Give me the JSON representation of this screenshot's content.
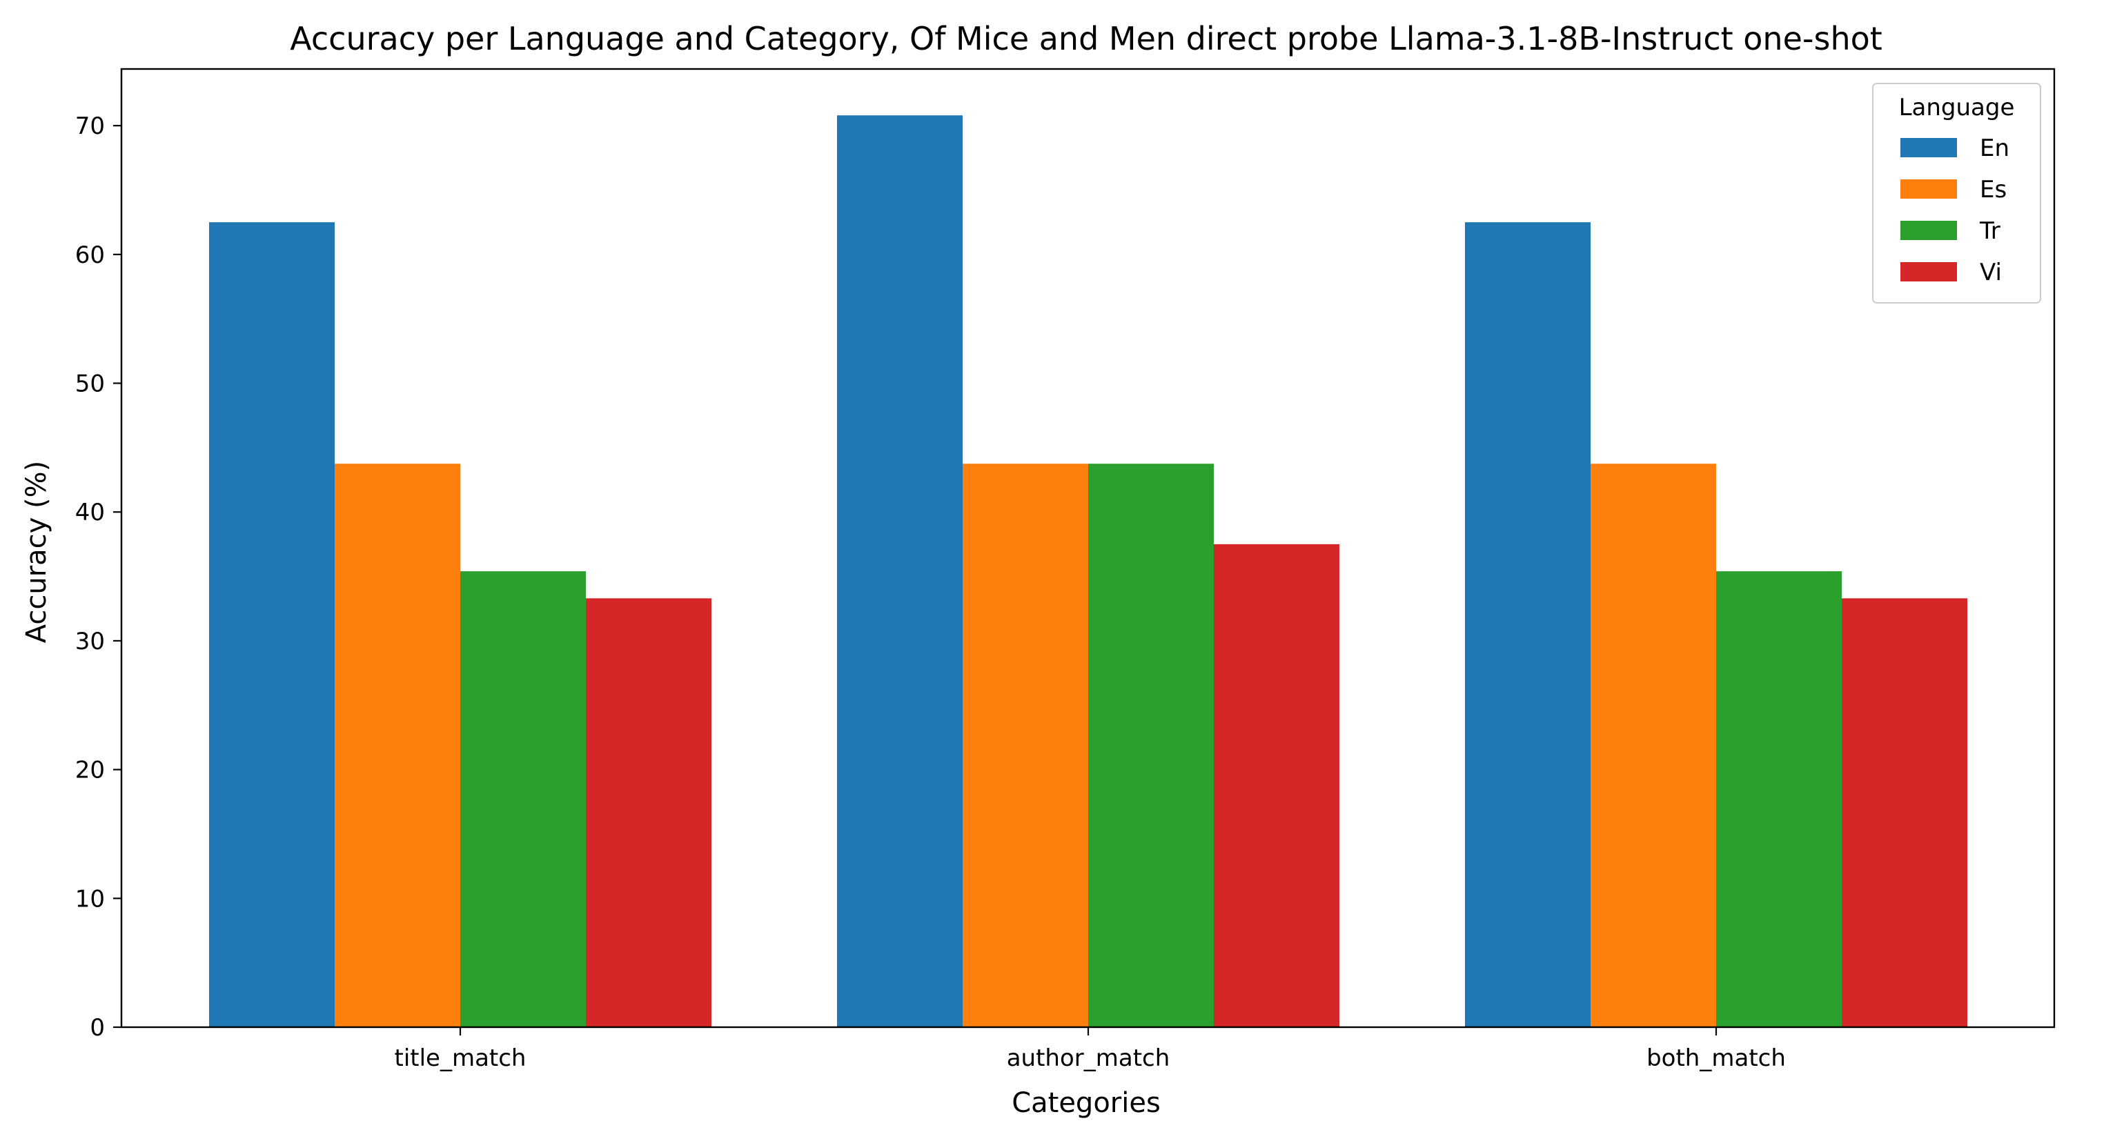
{
  "chart_data": {
    "type": "bar",
    "title": "Accuracy per Language and Category, Of Mice and Men direct probe Llama-3.1-8B-Instruct one-shot",
    "xlabel": "Categories",
    "ylabel": "Accuracy (%)",
    "categories": [
      "title_match",
      "author_match",
      "both_match"
    ],
    "series": [
      {
        "name": "En",
        "color": "#1f77b4",
        "values": [
          62.5,
          70.8,
          62.5
        ]
      },
      {
        "name": "Es",
        "color": "#ff7f0e",
        "values": [
          43.75,
          43.75,
          43.75
        ]
      },
      {
        "name": "Tr",
        "color": "#2ca02c",
        "values": [
          35.4,
          43.75,
          35.4
        ]
      },
      {
        "name": "Vi",
        "color": "#d62728",
        "values": [
          33.3,
          37.5,
          33.3
        ]
      }
    ],
    "ylim": [
      0,
      74.4
    ],
    "yticks": [
      0,
      10,
      20,
      30,
      40,
      50,
      60,
      70
    ],
    "grid": false,
    "legend": {
      "title": "Language",
      "position": "top-right"
    }
  }
}
